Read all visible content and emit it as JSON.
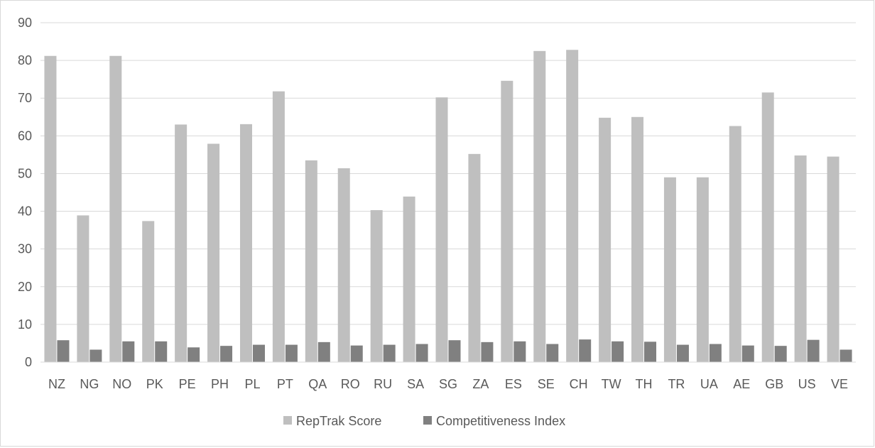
{
  "chart_data": {
    "type": "bar",
    "categories": [
      "NZ",
      "NG",
      "NO",
      "PK",
      "PE",
      "PH",
      "PL",
      "PT",
      "QA",
      "RO",
      "RU",
      "SA",
      "SG",
      "ZA",
      "ES",
      "SE",
      "CH",
      "TW",
      "TH",
      "TR",
      "UA",
      "AE",
      "GB",
      "US",
      "VE"
    ],
    "series": [
      {
        "name": "RepTrak Score",
        "color": "#bfbfbf",
        "values": [
          81.2,
          38.9,
          81.2,
          37.4,
          63.0,
          57.9,
          63.1,
          71.8,
          53.5,
          51.4,
          40.3,
          43.9,
          70.2,
          55.2,
          74.6,
          82.5,
          82.8,
          64.8,
          65.0,
          49.0,
          49.0,
          62.6,
          71.5,
          54.8,
          54.5
        ]
      },
      {
        "name": "Competitiveness Index",
        "color": "#808080",
        "values": [
          5.8,
          3.3,
          5.5,
          5.5,
          3.9,
          4.3,
          4.6,
          4.6,
          5.3,
          4.4,
          4.6,
          4.8,
          5.8,
          5.3,
          5.5,
          4.8,
          6.0,
          5.5,
          5.4,
          4.6,
          4.8,
          4.4,
          4.3,
          5.9,
          3.3
        ]
      }
    ],
    "title": "",
    "xlabel": "",
    "ylabel": "",
    "ylim": [
      0,
      90
    ],
    "yticks": [
      "0",
      "10",
      "20",
      "30",
      "40",
      "50",
      "60",
      "70",
      "80",
      "90"
    ],
    "grid": true,
    "legend_position": "bottom"
  }
}
